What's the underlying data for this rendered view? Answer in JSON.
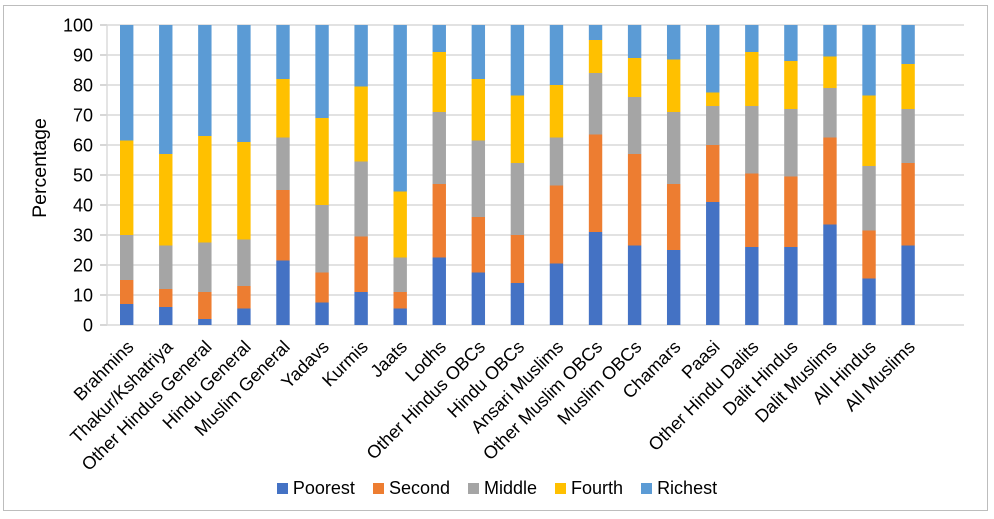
{
  "chart_data": {
    "type": "bar",
    "subtype": "stacked-100-percent-column",
    "title": "",
    "xlabel": "",
    "ylabel": "Percentage",
    "ylim": [
      0,
      100
    ],
    "ytick_interval": 10,
    "yticks": [
      0,
      10,
      20,
      30,
      40,
      50,
      60,
      70,
      80,
      90,
      100
    ],
    "grid": "horizontal",
    "legend_position": "bottom",
    "categories": [
      "Brahmins",
      "Thakur/Kshatriya",
      "Other Hindus General",
      "Hindu General",
      "Muslim General",
      "Yadavs",
      "Kurmis",
      "Jaats",
      "Lodhs",
      "Other Hindus OBCs",
      "Hindu OBCs",
      "Ansari Muslims",
      "Other Muslim OBCs",
      "Muslim OBCs",
      "Chamars",
      "Paasi",
      "Other Hindu Dalits",
      "Dalit Hindus",
      "Dalit Muslims",
      "All Hindus",
      "All Muslims"
    ],
    "series": [
      {
        "name": "Poorest",
        "color": "#4472C4",
        "values": [
          7,
          6,
          2,
          5.5,
          21.5,
          7.5,
          11,
          5.5,
          22.5,
          17.5,
          14,
          20.5,
          31,
          26.5,
          25,
          41,
          26,
          26,
          33.5,
          15.5,
          26.5
        ]
      },
      {
        "name": "Second",
        "color": "#ED7D31",
        "values": [
          8,
          6,
          9,
          7.5,
          23.5,
          10,
          18.5,
          5.5,
          24.5,
          18.5,
          16,
          26,
          32.5,
          30.5,
          22,
          19,
          24.5,
          23.5,
          29,
          16,
          27.5
        ]
      },
      {
        "name": "Middle",
        "color": "#A5A5A5",
        "values": [
          15,
          14.5,
          16.5,
          15.5,
          17.5,
          22.5,
          25,
          11.5,
          24,
          25.5,
          24,
          16,
          20.5,
          19,
          24,
          13,
          22.5,
          22.5,
          16.5,
          21.5,
          18
        ]
      },
      {
        "name": "Fourth",
        "color": "#FFC000",
        "values": [
          31.5,
          30.5,
          35.5,
          32.5,
          19.5,
          29,
          25,
          22,
          20,
          20.5,
          22.5,
          17.5,
          11,
          13,
          17.5,
          4.5,
          18,
          16,
          10.5,
          23.5,
          15
        ]
      },
      {
        "name": "Richest",
        "color": "#5B9BD5",
        "values": [
          38.5,
          43,
          37,
          39,
          18,
          31,
          20.5,
          55.5,
          9,
          18,
          23.5,
          20,
          5,
          11,
          11.5,
          22.5,
          9,
          12,
          10.5,
          23.5,
          13
        ]
      }
    ],
    "colors": {
      "gridline": "#d9d9d9",
      "axis_line": "#d9d9d9",
      "tick_mark": "#c6c6c6",
      "text": "#000000",
      "frame_border": "#bdbdbd",
      "background": "#ffffff"
    }
  }
}
